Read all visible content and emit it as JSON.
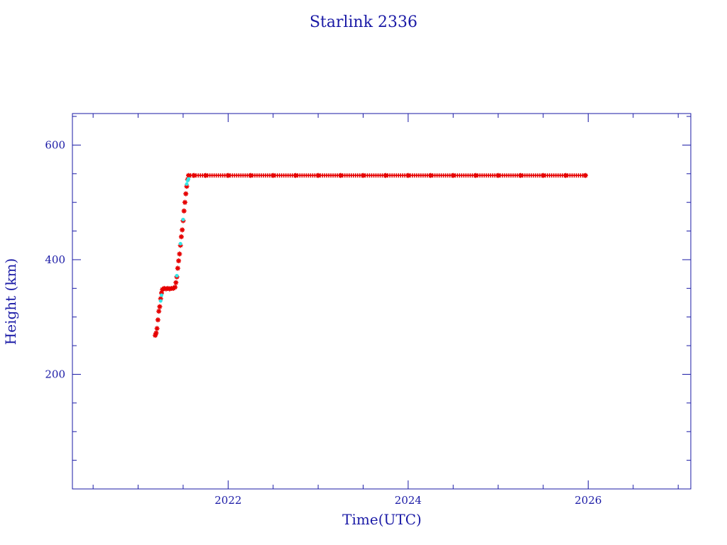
{
  "chart_data": {
    "type": "scatter",
    "title": "Starlink 2336",
    "xlabel": "Time(UTC)",
    "ylabel": "Height (km)",
    "xlim": [
      2020.27,
      2027.14
    ],
    "ylim": [
      0,
      655
    ],
    "x_ticks": [
      2022,
      2024,
      2026
    ],
    "x_tick_labels": [
      "2022",
      "2024",
      "2026"
    ],
    "x_minor_step": 0.5,
    "y_ticks": [
      200,
      400,
      600
    ],
    "y_tick_labels": [
      "200",
      "400",
      "600"
    ],
    "y_minor_step": 50,
    "grid": false,
    "series": [
      {
        "color": "#e60000",
        "marker": "star",
        "points": [
          [
            2021.19,
            268
          ],
          [
            2021.2,
            272
          ],
          [
            2021.21,
            280
          ],
          [
            2021.22,
            295
          ],
          [
            2021.23,
            310
          ],
          [
            2021.24,
            318
          ],
          [
            2021.25,
            332
          ],
          [
            2021.26,
            342
          ],
          [
            2021.27,
            348
          ],
          [
            2021.29,
            350
          ],
          [
            2021.31,
            349
          ],
          [
            2021.33,
            350
          ],
          [
            2021.35,
            349
          ],
          [
            2021.37,
            350
          ],
          [
            2021.39,
            350
          ],
          [
            2021.41,
            352
          ],
          [
            2021.42,
            360
          ],
          [
            2021.43,
            370
          ],
          [
            2021.44,
            385
          ],
          [
            2021.45,
            398
          ],
          [
            2021.46,
            410
          ],
          [
            2021.47,
            425
          ],
          [
            2021.48,
            440
          ],
          [
            2021.49,
            452
          ],
          [
            2021.5,
            468
          ],
          [
            2021.51,
            485
          ],
          [
            2021.52,
            500
          ],
          [
            2021.53,
            515
          ],
          [
            2021.54,
            528
          ],
          [
            2021.55,
            540
          ],
          [
            2021.56,
            547
          ],
          [
            2021.62,
            547
          ],
          [
            2021.75,
            547
          ],
          [
            2022.0,
            547
          ],
          [
            2022.25,
            547
          ],
          [
            2022.5,
            547
          ],
          [
            2022.75,
            547
          ],
          [
            2023.0,
            547
          ],
          [
            2023.25,
            547
          ],
          [
            2023.5,
            547
          ],
          [
            2023.75,
            547
          ],
          [
            2024.0,
            547
          ],
          [
            2024.25,
            547
          ],
          [
            2024.5,
            547
          ],
          [
            2024.75,
            547
          ],
          [
            2025.0,
            547
          ],
          [
            2025.25,
            547
          ],
          [
            2025.5,
            547
          ],
          [
            2025.75,
            547
          ],
          [
            2025.97,
            547
          ]
        ]
      },
      {
        "color": "#33e6e6",
        "marker": "dot",
        "points": [
          [
            2021.25,
            328
          ],
          [
            2021.26,
            338
          ],
          [
            2021.43,
            372
          ],
          [
            2021.47,
            428
          ],
          [
            2021.5,
            470
          ],
          [
            2021.54,
            532
          ],
          [
            2021.55,
            538
          ],
          [
            2021.56,
            541
          ]
        ]
      }
    ]
  }
}
